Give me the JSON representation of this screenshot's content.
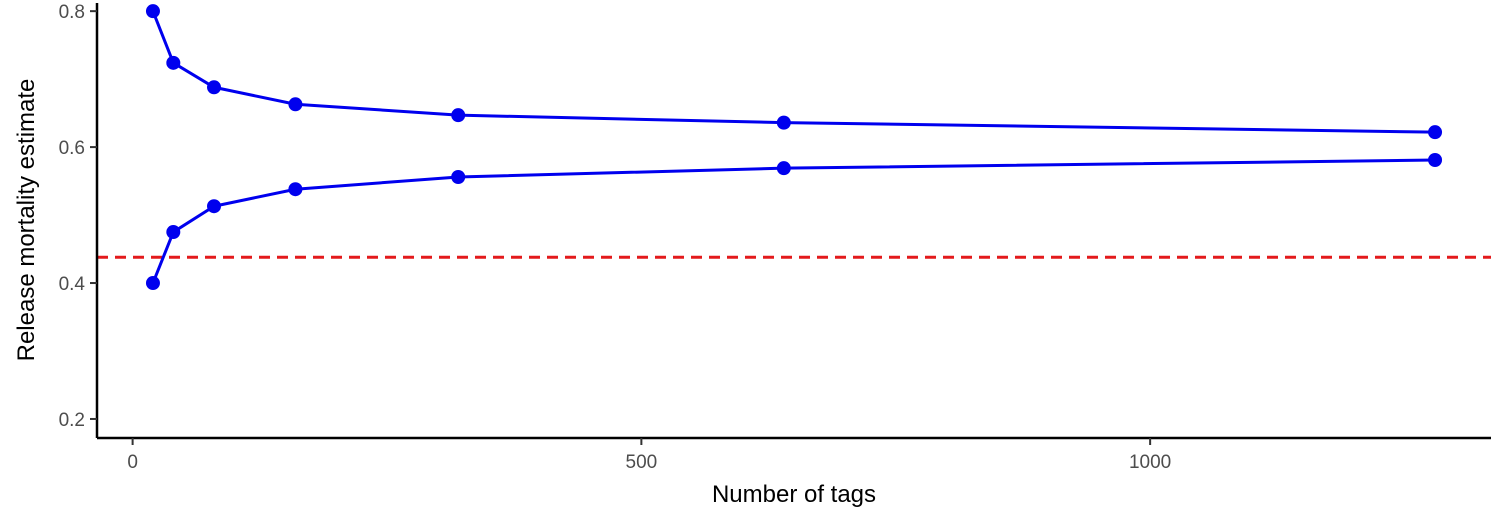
{
  "chart_data": {
    "type": "line",
    "xlabel": "Number of tags",
    "ylabel": "Release mortality estimate",
    "xlim": [
      -35,
      1335
    ],
    "ylim": [
      0.172,
      0.812
    ],
    "x_ticks": [
      0,
      500,
      1000
    ],
    "x_tick_labels": [
      "0",
      "500",
      "1000"
    ],
    "y_ticks": [
      0.2,
      0.4,
      0.6,
      0.8
    ],
    "y_tick_labels": [
      "0.2",
      "0.4",
      "0.6",
      "0.8"
    ],
    "grid": false,
    "legend": "none",
    "series": [
      {
        "color": "#0000ee",
        "x": [
          20,
          40,
          80,
          160,
          320,
          640,
          1280
        ],
        "y": [
          0.8,
          0.724,
          0.688,
          0.663,
          0.647,
          0.636,
          0.622
        ]
      },
      {
        "color": "#0000ee",
        "x": [
          20,
          40,
          80,
          160,
          320,
          640,
          1280
        ],
        "y": [
          0.4,
          0.475,
          0.513,
          0.538,
          0.556,
          0.569,
          0.581
        ]
      }
    ],
    "reference_line": {
      "y": 0.438,
      "color": "#e31a1c",
      "style": "dashed"
    }
  }
}
